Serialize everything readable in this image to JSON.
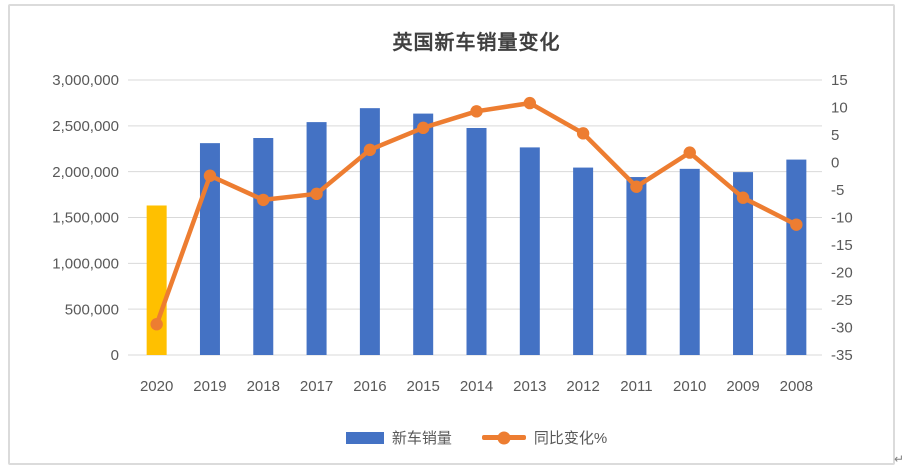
{
  "page": {
    "paragraph_mark": "↵"
  },
  "chart": {
    "colors": {
      "bar": "#4472C4",
      "bar_highlight": "#FFC000",
      "line": "#ED7D31",
      "grid": "#D9D9D9",
      "axis_text": "#595959",
      "title_text": "#404040",
      "frame_border": "#DBDBDB"
    }
  },
  "chart_data": {
    "type": "bar+line combo",
    "title": "英国新车销量变化",
    "categories": [
      "2020",
      "2019",
      "2018",
      "2017",
      "2016",
      "2015",
      "2014",
      "2013",
      "2012",
      "2011",
      "2010",
      "2009",
      "2008"
    ],
    "series": [
      {
        "name": "新车销量",
        "type": "bar",
        "axis": "left",
        "color": "#4472C4",
        "highlight_index": 0,
        "highlight_color": "#FFC000",
        "values": [
          1631064,
          2311140,
          2367147,
          2540617,
          2692786,
          2633503,
          2476435,
          2264737,
          2044609,
          1941253,
          2030846,
          1994999,
          2131795
        ]
      },
      {
        "name": "同比变化%",
        "type": "line",
        "axis": "right",
        "color": "#ED7D31",
        "values": [
          -29.4,
          -2.4,
          -6.8,
          -5.7,
          2.3,
          6.3,
          9.3,
          10.8,
          5.3,
          -4.4,
          1.8,
          -6.4,
          -11.3
        ]
      }
    ],
    "left_axis": {
      "min": 0,
      "max": 3000000,
      "tick_interval": 500000,
      "tick_labels": [
        "3,000,000",
        "2,500,000",
        "2,000,000",
        "1,500,000",
        "1,000,000",
        "500,000",
        "0"
      ]
    },
    "right_axis": {
      "min": -35,
      "max": 15,
      "tick_interval": 5,
      "tick_labels": [
        "15",
        "10",
        "5",
        "0",
        "-5",
        "-10",
        "-15",
        "-20",
        "-25",
        "-30",
        "-35"
      ]
    },
    "grid": "horizontal",
    "legend_position": "bottom"
  }
}
